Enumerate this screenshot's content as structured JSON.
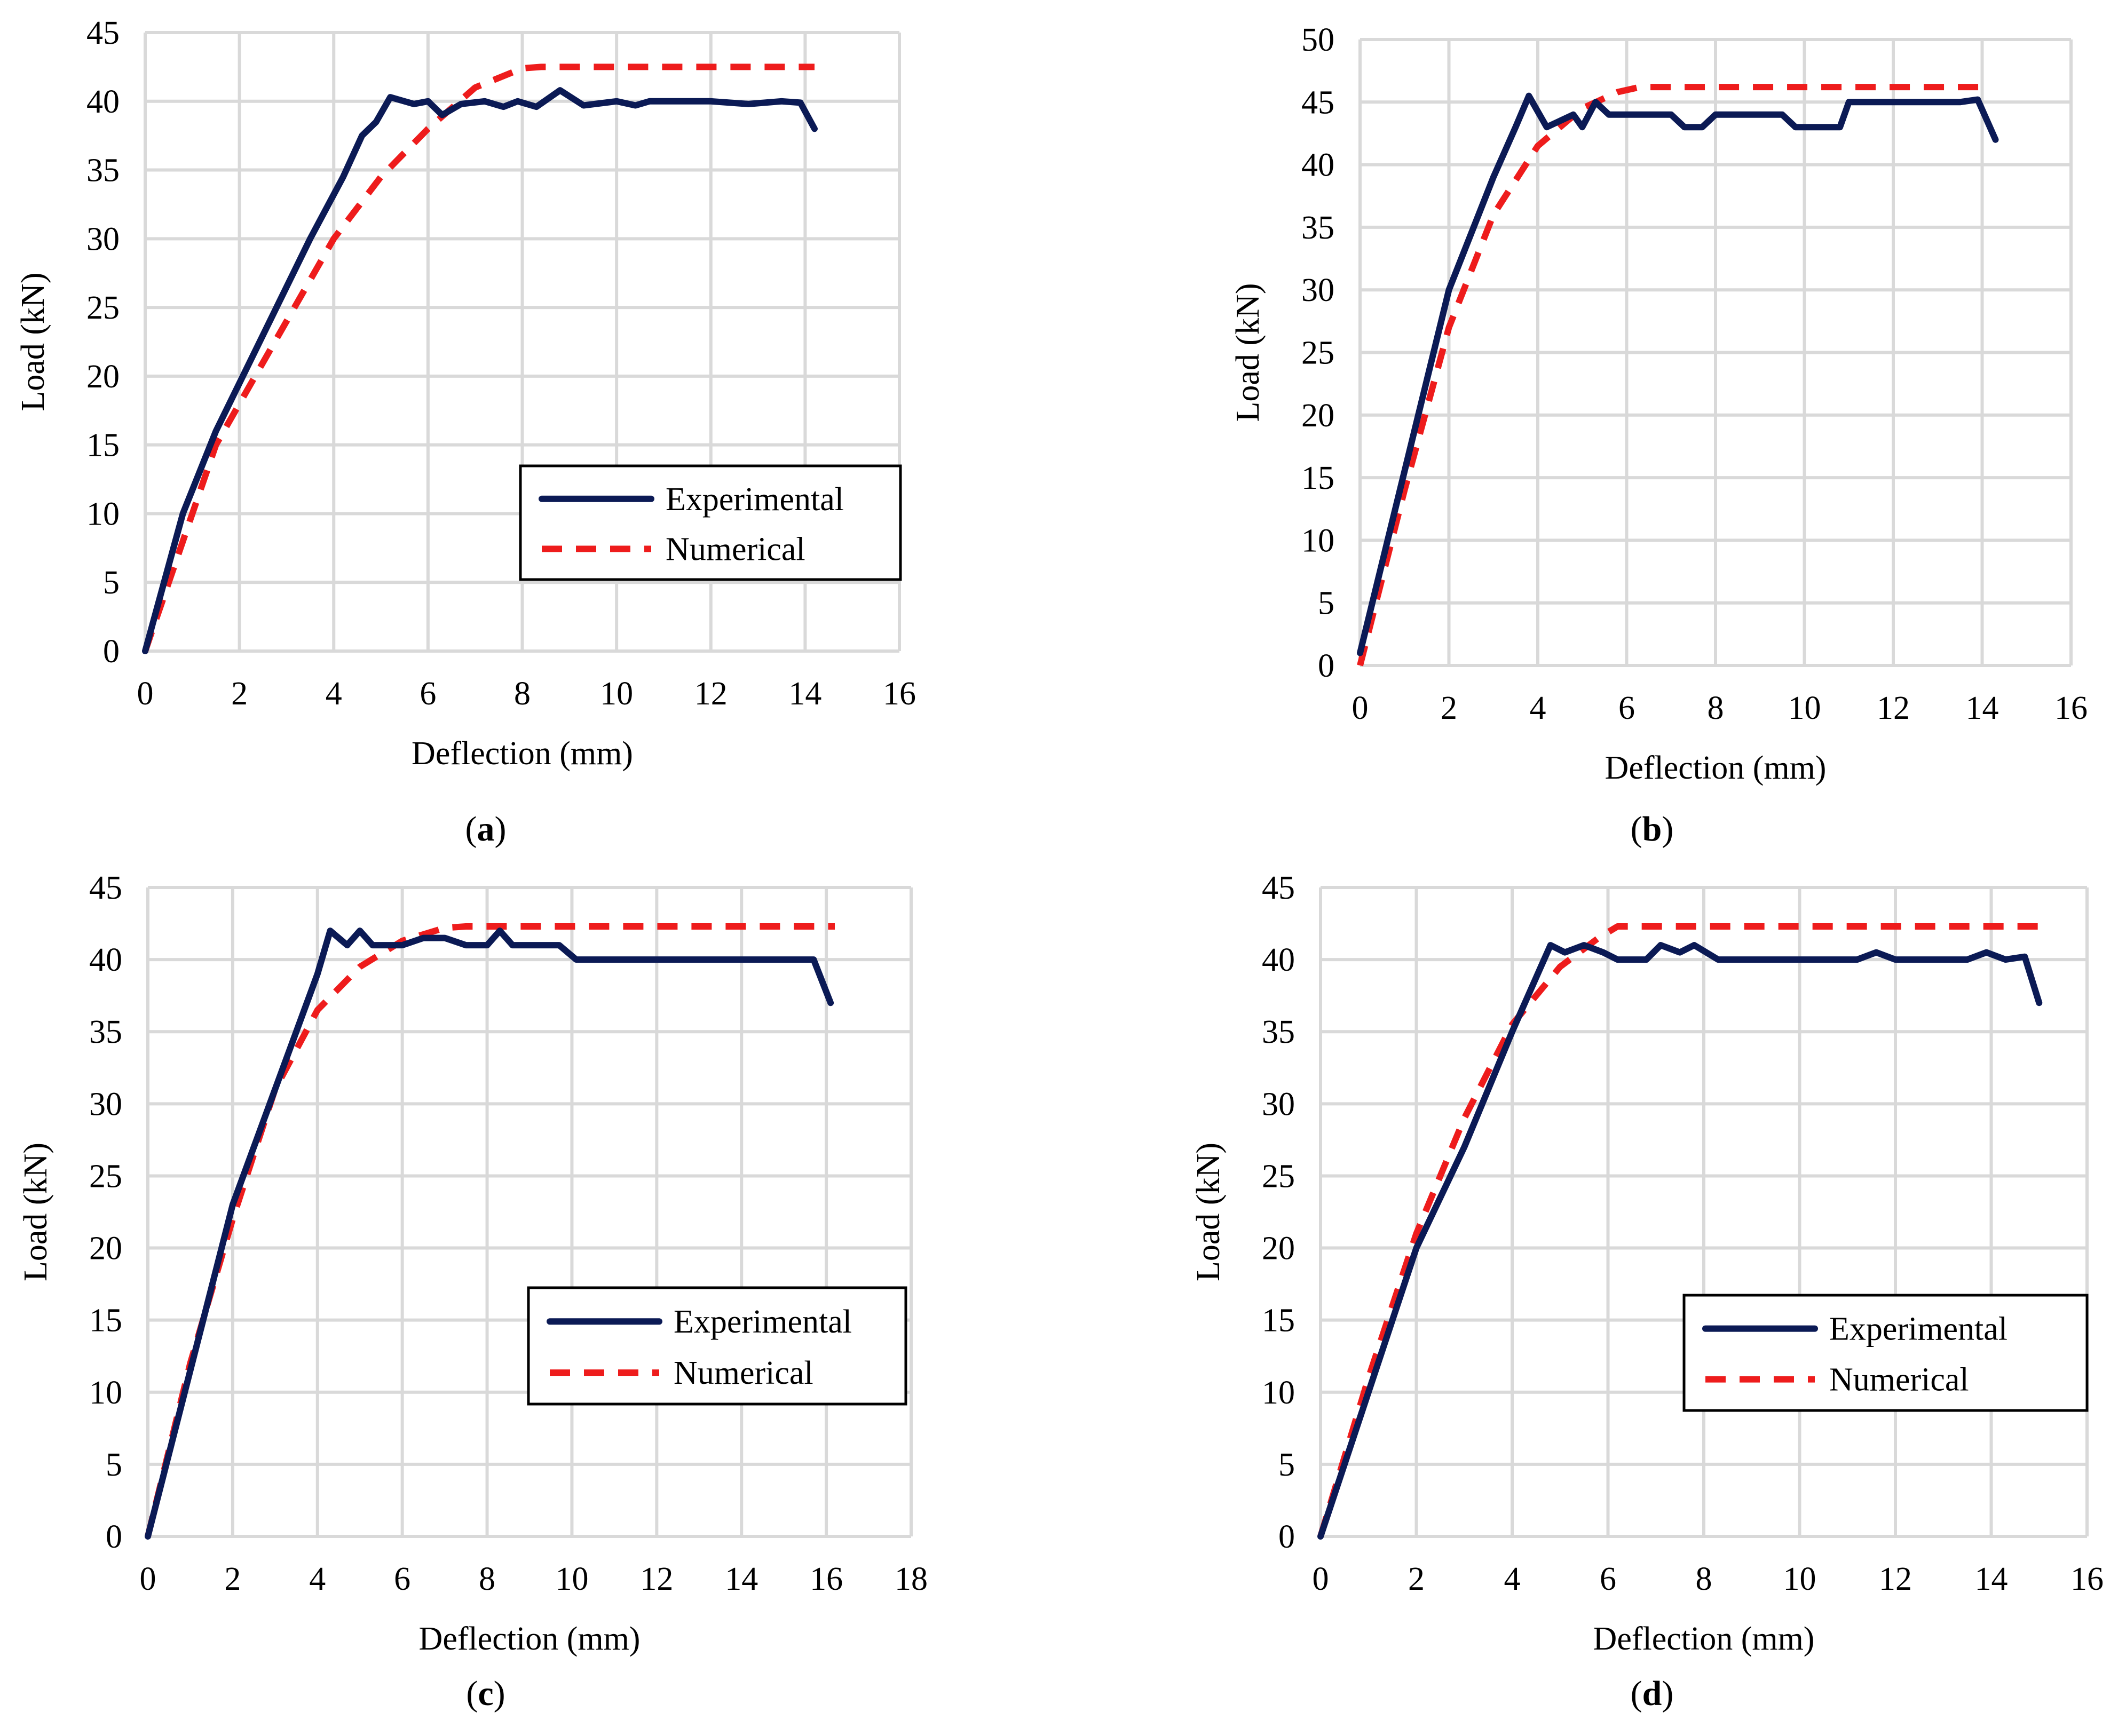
{
  "colors": {
    "experimental": "#0b1a55",
    "numerical": "#ee1c1c",
    "grid": "#d9d9d9"
  },
  "chart_data": [
    {
      "id": "a",
      "type": "line",
      "panel_label": "a",
      "xlabel": "Deflection (mm)",
      "ylabel": "Load (kN)",
      "xlim": [
        0,
        16
      ],
      "xticks": [
        0,
        2,
        4,
        6,
        8,
        10,
        12,
        14,
        16
      ],
      "ylim": [
        0,
        45
      ],
      "yticks": [
        0,
        5,
        10,
        15,
        20,
        25,
        30,
        35,
        40,
        45
      ],
      "legend": {
        "position": "lower-right"
      },
      "series": [
        {
          "name": "Experimental",
          "x": [
            0,
            0.8,
            1.5,
            2.5,
            3.5,
            4.2,
            4.6,
            4.9,
            5.2,
            5.7,
            6.0,
            6.3,
            6.7,
            7.2,
            7.6,
            7.9,
            8.3,
            8.8,
            9.3,
            10.0,
            10.4,
            10.7,
            11.2,
            12.0,
            12.8,
            13.5,
            13.9,
            14.2
          ],
          "y": [
            0,
            10,
            16,
            23,
            30,
            34.5,
            37.5,
            38.5,
            40.3,
            39.8,
            40,
            39,
            39.8,
            40,
            39.6,
            40,
            39.6,
            40.8,
            39.7,
            40,
            39.7,
            40,
            40,
            40,
            39.8,
            40,
            39.9,
            38
          ]
        },
        {
          "name": "Numerical",
          "x": [
            0,
            1.5,
            3,
            4,
            5,
            6,
            7,
            8,
            8.4,
            9,
            10,
            12,
            14.2
          ],
          "y": [
            0,
            15,
            24,
            30,
            34.5,
            38,
            41,
            42.4,
            42.5,
            42.5,
            42.5,
            42.5,
            42.5
          ]
        }
      ]
    },
    {
      "id": "b",
      "type": "line",
      "panel_label": "b",
      "xlabel": "Deflection (mm)",
      "ylabel": "Load (kN)",
      "xlim": [
        0,
        16
      ],
      "xticks": [
        0,
        2,
        4,
        6,
        8,
        10,
        12,
        14,
        16
      ],
      "ylim": [
        0,
        50
      ],
      "yticks": [
        0,
        5,
        10,
        15,
        20,
        25,
        30,
        35,
        40,
        45,
        50
      ],
      "legend": {
        "position": "none"
      },
      "series": [
        {
          "name": "Experimental",
          "x": [
            0,
            2,
            3,
            3.5,
            3.8,
            4.2,
            4.5,
            4.8,
            5.0,
            5.3,
            5.6,
            6.0,
            7.0,
            7.3,
            7.7,
            8.0,
            9.5,
            9.8,
            10.5,
            10.8,
            11.0,
            11.5,
            13.5,
            13.9,
            14.3
          ],
          "y": [
            1,
            30,
            39,
            43,
            45.5,
            43,
            43.5,
            44,
            43,
            45,
            44,
            44,
            44,
            43,
            43,
            44,
            44,
            43,
            43,
            43,
            45,
            45,
            45,
            45.2,
            42
          ]
        },
        {
          "name": "Numerical",
          "x": [
            0,
            1,
            2,
            3,
            4,
            5,
            5.8,
            6.3,
            7,
            10,
            14
          ],
          "y": [
            0,
            14,
            27,
            36,
            41.5,
            44.5,
            45.8,
            46.2,
            46.2,
            46.2,
            46.2
          ]
        }
      ]
    },
    {
      "id": "c",
      "type": "line",
      "panel_label": "c",
      "xlabel": "Deflection (mm)",
      "ylabel": "Load (kN)",
      "xlim": [
        0,
        18
      ],
      "xticks": [
        0,
        2,
        4,
        6,
        8,
        10,
        12,
        14,
        16,
        18
      ],
      "ylim": [
        0,
        45
      ],
      "yticks": [
        0,
        5,
        10,
        15,
        20,
        25,
        30,
        35,
        40,
        45
      ],
      "legend": {
        "position": "lower-right"
      },
      "series": [
        {
          "name": "Experimental",
          "x": [
            0,
            2,
            3,
            4.0,
            4.3,
            4.7,
            5.0,
            5.3,
            6,
            6.5,
            7,
            7.5,
            8,
            8.3,
            8.6,
            9,
            9.7,
            10.1,
            10.5,
            15.7,
            16.1
          ],
          "y": [
            0,
            23,
            31,
            39,
            42,
            41,
            42,
            41,
            41,
            41.5,
            41.5,
            41,
            41,
            42,
            41,
            41,
            41,
            40,
            40,
            40,
            37
          ]
        },
        {
          "name": "Numerical",
          "x": [
            0,
            1,
            2,
            3,
            4,
            5,
            6,
            7,
            7.5,
            10,
            16.2
          ],
          "y": [
            0,
            12,
            22,
            31,
            36.5,
            39.5,
            41.3,
            42.2,
            42.3,
            42.3,
            42.3
          ]
        }
      ]
    },
    {
      "id": "d",
      "type": "line",
      "panel_label": "d",
      "xlabel": "Deflection (mm)",
      "ylabel": "Load (kN)",
      "xlim": [
        0,
        16
      ],
      "xticks": [
        0,
        2,
        4,
        6,
        8,
        10,
        12,
        14,
        16
      ],
      "ylim": [
        0,
        45
      ],
      "yticks": [
        0,
        5,
        10,
        15,
        20,
        25,
        30,
        35,
        40,
        45
      ],
      "legend": {
        "position": "lower-right"
      },
      "series": [
        {
          "name": "Experimental",
          "x": [
            0,
            2,
            3,
            4,
            4.6,
            4.8,
            5.1,
            5.5,
            5.9,
            6.2,
            6.8,
            7.1,
            7.5,
            7.8,
            8.3,
            8.6,
            11.2,
            11.6,
            12.0,
            13.5,
            13.9,
            14.3,
            14.7,
            15.0
          ],
          "y": [
            0,
            20,
            27,
            35,
            39.5,
            41,
            40.5,
            41,
            40.5,
            40,
            40,
            41,
            40.5,
            41,
            40,
            40,
            40,
            40.5,
            40,
            40,
            40.5,
            40,
            40.2,
            37
          ]
        },
        {
          "name": "Numerical",
          "x": [
            0,
            1,
            2,
            3,
            4,
            5,
            5.8,
            6.2,
            7,
            10,
            15
          ],
          "y": [
            0,
            11,
            21,
            29,
            35.5,
            39.5,
            41.5,
            42.3,
            42.3,
            42.3,
            42.3
          ]
        }
      ]
    }
  ]
}
